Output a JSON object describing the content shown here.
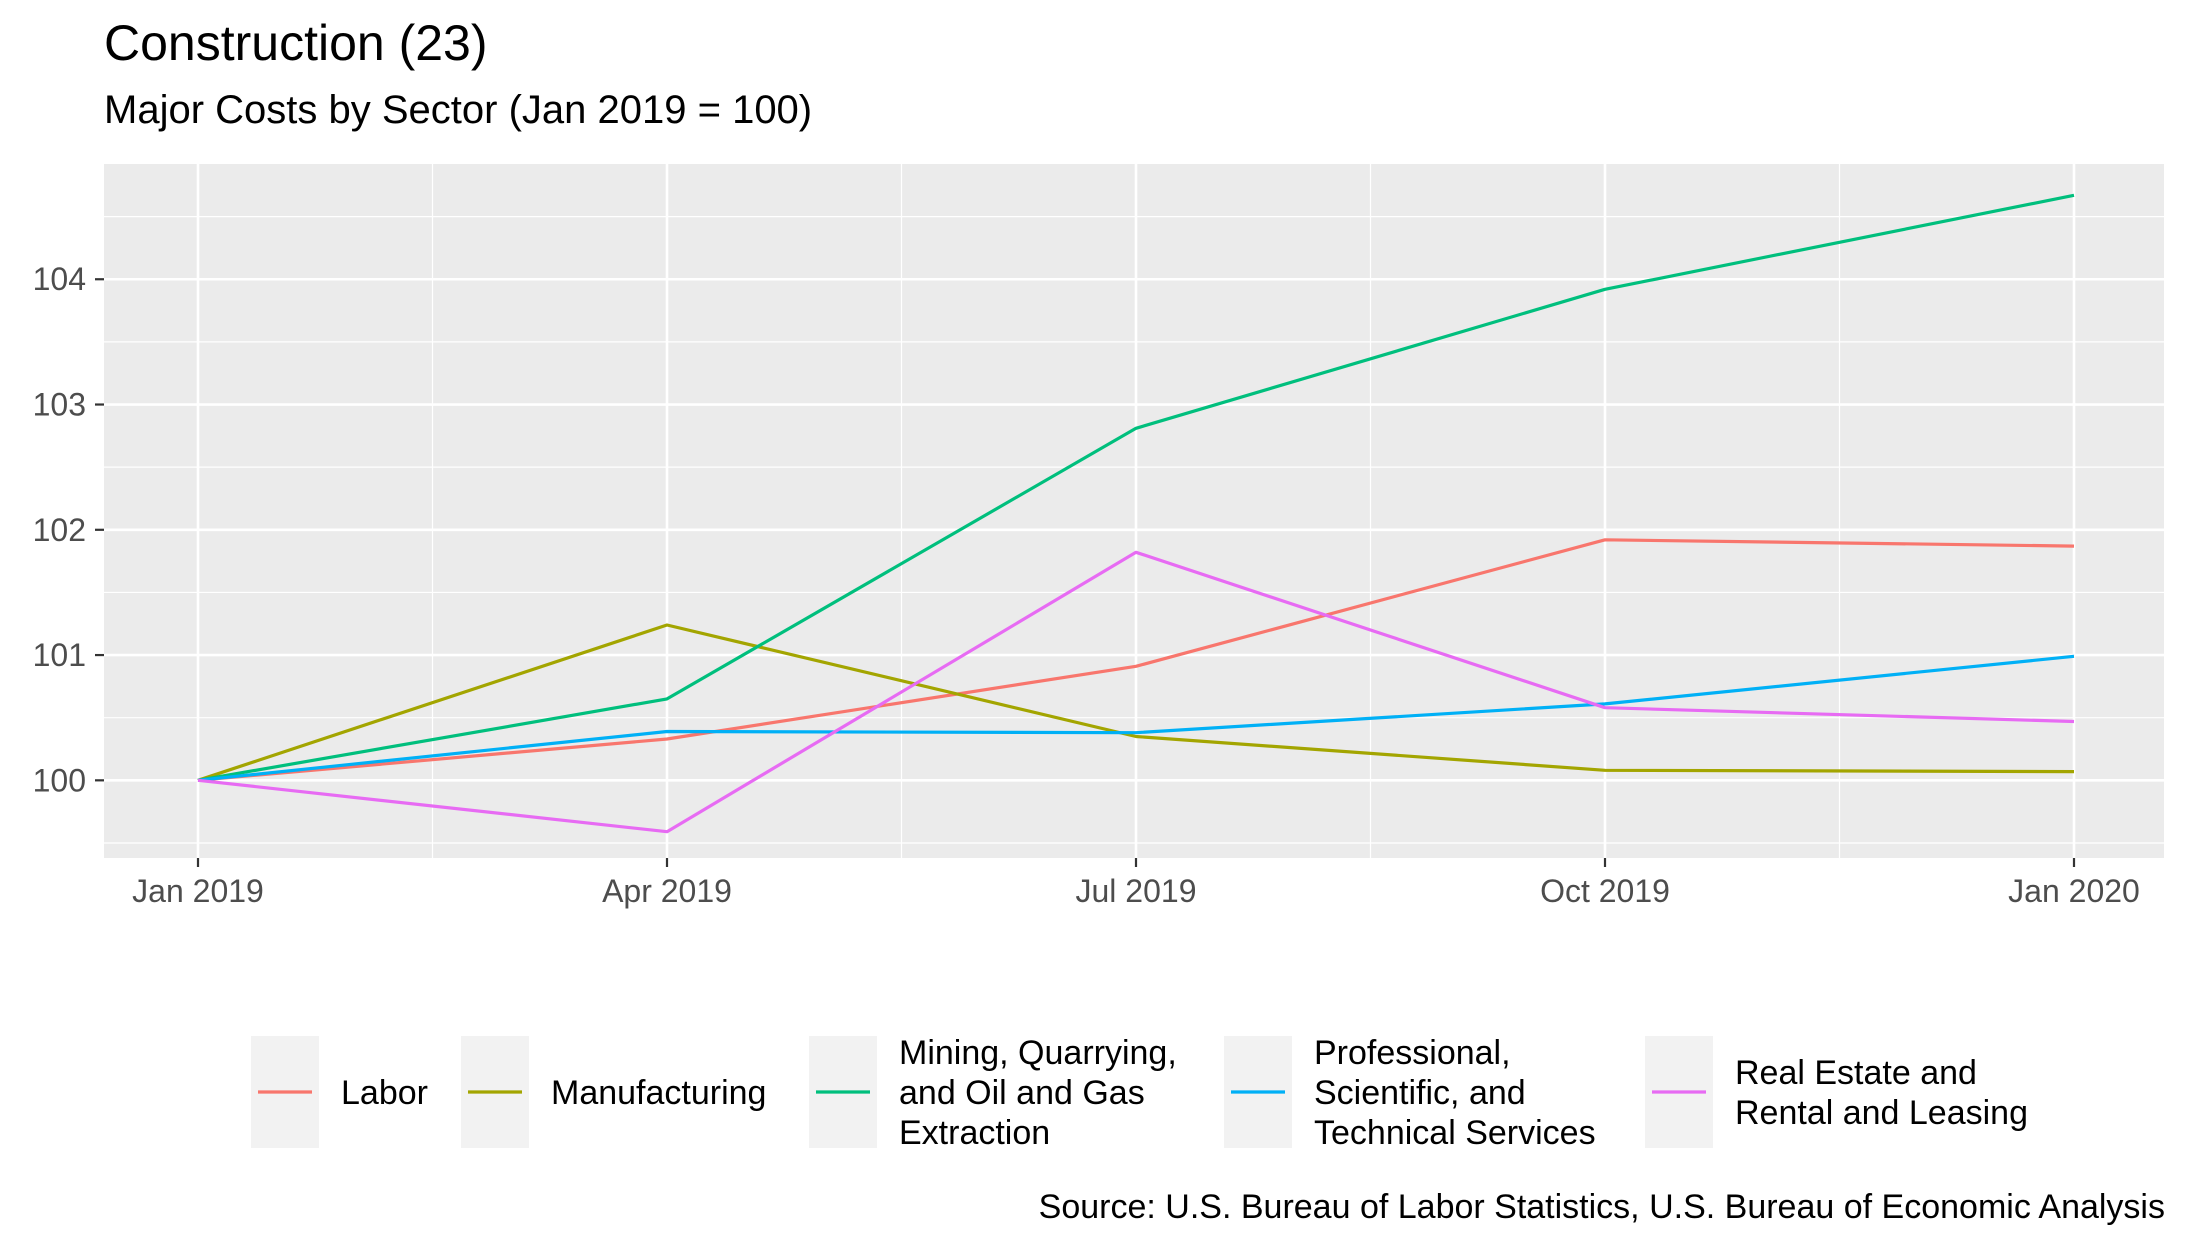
{
  "chart_data": {
    "type": "line",
    "title": "Construction (23)",
    "subtitle": "Major Costs by Sector (Jan 2019 = 100)",
    "xlabel": "",
    "ylabel": "",
    "caption": "Source: U.S. Bureau of Labor Statistics, U.S. Bureau of Economic Analysis",
    "x": [
      "Jan 2019",
      "Apr 2019",
      "Jul 2019",
      "Oct 2019",
      "Jan 2020"
    ],
    "x_tick_labels": [
      "Jan 2019",
      "Apr 2019",
      "Jul 2019",
      "Oct 2019",
      "Jan 2020"
    ],
    "y_ticks": [
      100,
      101,
      102,
      103,
      104
    ],
    "ylim": [
      99.38,
      104.92
    ],
    "grid": true,
    "legend_position": "bottom",
    "series": [
      {
        "name": "Labor",
        "legend_lines": [
          "Labor"
        ],
        "color": "#F8766D",
        "values": [
          100.0,
          100.33,
          100.91,
          101.92,
          101.87
        ]
      },
      {
        "name": "Manufacturing",
        "legend_lines": [
          "Manufacturing"
        ],
        "color": "#A3A500",
        "values": [
          100.0,
          101.24,
          100.35,
          100.08,
          100.07
        ]
      },
      {
        "name": "Mining, Quarrying, and Oil and Gas Extraction",
        "legend_lines": [
          "Mining, Quarrying,",
          "and Oil and Gas",
          "Extraction"
        ],
        "color": "#00BF7D",
        "values": [
          100.0,
          100.65,
          102.81,
          103.92,
          104.67
        ]
      },
      {
        "name": "Professional, Scientific, and Technical Services",
        "legend_lines": [
          "Professional,",
          "Scientific, and",
          "Technical Services"
        ],
        "color": "#00B0F6",
        "values": [
          100.0,
          100.39,
          100.38,
          100.61,
          100.99
        ]
      },
      {
        "name": "Real Estate and Rental and Leasing",
        "legend_lines": [
          "Real Estate and",
          "Rental and Leasing"
        ],
        "color": "#E76BF3",
        "values": [
          100.0,
          99.59,
          101.82,
          100.58,
          100.47
        ]
      }
    ]
  }
}
